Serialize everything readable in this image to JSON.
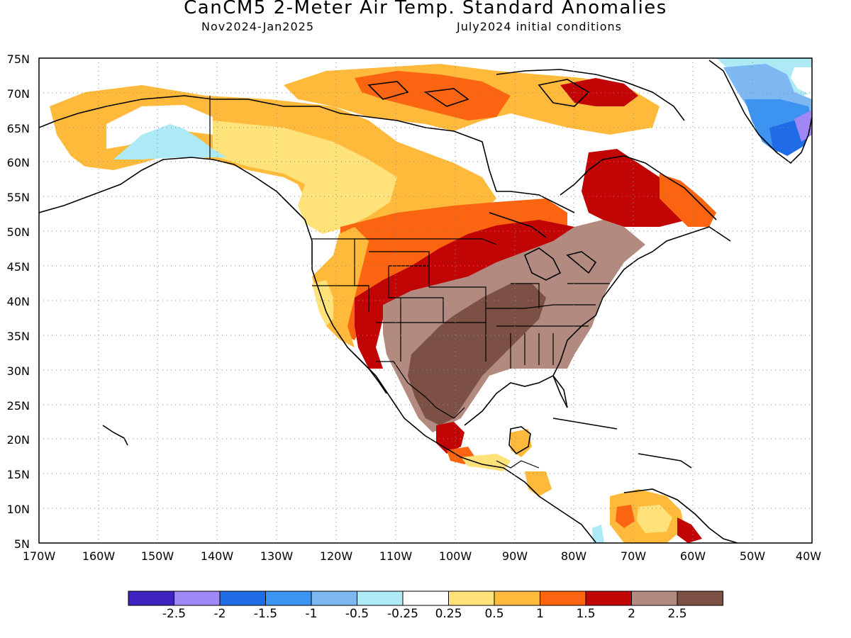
{
  "title": "CanCM5 2-Meter Air Temp. Standard Anomalies",
  "subtitle_left": "Nov2024-Jan2025",
  "subtitle_right": "July2024 initial conditions",
  "map": {
    "lat_labels": [
      "75N",
      "70N",
      "65N",
      "60N",
      "55N",
      "50N",
      "45N",
      "40N",
      "35N",
      "30N",
      "25N",
      "20N",
      "15N",
      "10N",
      "5N"
    ],
    "lon_labels": [
      "170W",
      "160W",
      "150W",
      "140W",
      "130W",
      "120W",
      "110W",
      "100W",
      "90W",
      "80W",
      "70W",
      "60W",
      "50W",
      "40W"
    ],
    "gridlines": true,
    "lat_range": [
      5,
      75
    ],
    "lon_range": [
      -170,
      -40
    ]
  },
  "legend": {
    "colors": [
      "#3f22bf",
      "#9f88f5",
      "#1f6ce6",
      "#3d94f0",
      "#7db8f2",
      "#aeeaf5",
      "#ffffff",
      "#ffe27a",
      "#ffb93b",
      "#fb6411",
      "#c10505",
      "#b38a80",
      "#7c5045"
    ],
    "labels": [
      "-2.5",
      "-2",
      "-1.5",
      "-1",
      "-0.5",
      "-0.25",
      "0.25",
      "0.5",
      "1",
      "1.5",
      "2",
      "2.5"
    ]
  }
}
